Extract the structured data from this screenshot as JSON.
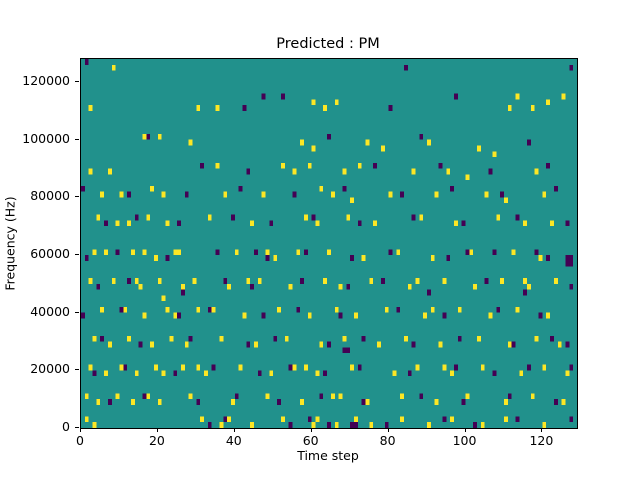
{
  "title": "Predicted : PM",
  "chart_data": {
    "type": "heatmap",
    "title": "Predicted : PM",
    "xlabel": "Time step",
    "ylabel": "Frequency (Hz)",
    "x_range": [
      0,
      129
    ],
    "y_range": [
      0,
      128000
    ],
    "x_ticks": [
      0,
      20,
      40,
      60,
      80,
      100,
      120
    ],
    "y_ticks": [
      0,
      20000,
      40000,
      60000,
      80000,
      100000,
      120000
    ],
    "n_time_steps": 129,
    "n_freq_bins": 64,
    "freq_bin_hz": 2000,
    "grid": false,
    "legend": "none",
    "colors": {
      "background_mid": "#21918c",
      "high_yellow": "#fde725",
      "low_purple": "#440154",
      "axes": "#000000",
      "figure_background": "#ffffff"
    },
    "yellow_cells": [
      [
        8,
        62
      ],
      [
        125,
        57
      ],
      [
        121,
        56
      ],
      [
        113,
        57
      ],
      [
        111,
        55
      ],
      [
        117,
        55
      ],
      [
        60,
        56
      ],
      [
        66,
        56
      ],
      [
        63,
        55
      ],
      [
        35,
        55
      ],
      [
        30,
        55
      ],
      [
        2,
        55
      ],
      [
        16,
        50
      ],
      [
        20,
        50
      ],
      [
        28,
        49
      ],
      [
        57,
        49
      ],
      [
        60,
        48
      ],
      [
        74,
        49
      ],
      [
        78,
        48
      ],
      [
        90,
        49
      ],
      [
        103,
        48
      ],
      [
        107,
        47
      ],
      [
        2,
        44
      ],
      [
        7,
        44
      ],
      [
        35,
        45
      ],
      [
        52,
        45
      ],
      [
        55,
        44
      ],
      [
        59,
        45
      ],
      [
        68,
        44
      ],
      [
        72,
        45
      ],
      [
        86,
        44
      ],
      [
        95,
        44
      ],
      [
        100,
        43
      ],
      [
        118,
        44
      ],
      [
        5,
        40
      ],
      [
        10,
        40
      ],
      [
        18,
        41
      ],
      [
        21,
        40
      ],
      [
        37,
        40
      ],
      [
        47,
        40
      ],
      [
        62,
        41
      ],
      [
        65,
        40
      ],
      [
        70,
        39
      ],
      [
        80,
        40
      ],
      [
        92,
        40
      ],
      [
        105,
        40
      ],
      [
        110,
        39
      ],
      [
        120,
        40
      ],
      [
        4,
        36
      ],
      [
        9,
        35
      ],
      [
        17,
        36
      ],
      [
        22,
        35
      ],
      [
        33,
        36
      ],
      [
        44,
        35
      ],
      [
        58,
        36
      ],
      [
        61,
        35
      ],
      [
        69,
        36
      ],
      [
        76,
        35
      ],
      [
        88,
        36
      ],
      [
        97,
        35
      ],
      [
        108,
        36
      ],
      [
        115,
        35
      ],
      [
        122,
        35
      ],
      [
        3,
        30
      ],
      [
        6,
        30
      ],
      [
        13,
        30
      ],
      [
        19,
        29
      ],
      [
        25,
        30
      ],
      [
        40,
        30
      ],
      [
        50,
        29
      ],
      [
        56,
        30
      ],
      [
        64,
        30
      ],
      [
        73,
        29
      ],
      [
        82,
        30
      ],
      [
        91,
        29
      ],
      [
        101,
        30
      ],
      [
        112,
        30
      ],
      [
        119,
        29
      ],
      [
        2,
        25
      ],
      [
        8,
        25
      ],
      [
        15,
        24
      ],
      [
        20,
        25
      ],
      [
        21,
        22
      ],
      [
        29,
        25
      ],
      [
        38,
        24
      ],
      [
        46,
        25
      ],
      [
        54,
        24
      ],
      [
        63,
        25
      ],
      [
        67,
        24
      ],
      [
        75,
        25
      ],
      [
        85,
        24
      ],
      [
        94,
        25
      ],
      [
        102,
        24
      ],
      [
        109,
        25
      ],
      [
        116,
        24
      ],
      [
        123,
        25
      ],
      [
        5,
        20
      ],
      [
        11,
        20
      ],
      [
        16,
        19
      ],
      [
        22,
        20
      ],
      [
        24,
        19
      ],
      [
        34,
        20
      ],
      [
        42,
        19
      ],
      [
        51,
        20
      ],
      [
        59,
        19
      ],
      [
        66,
        20
      ],
      [
        71,
        19
      ],
      [
        79,
        20
      ],
      [
        89,
        19
      ],
      [
        98,
        20
      ],
      [
        106,
        19
      ],
      [
        113,
        20
      ],
      [
        121,
        19
      ],
      [
        3,
        15
      ],
      [
        7,
        14
      ],
      [
        12,
        15
      ],
      [
        18,
        14
      ],
      [
        23,
        15
      ],
      [
        27,
        14
      ],
      [
        36,
        15
      ],
      [
        45,
        14
      ],
      [
        53,
        15
      ],
      [
        62,
        14
      ],
      [
        68,
        15
      ],
      [
        77,
        14
      ],
      [
        84,
        15
      ],
      [
        93,
        14
      ],
      [
        103,
        15
      ],
      [
        111,
        14
      ],
      [
        118,
        15
      ],
      [
        124,
        14
      ],
      [
        2,
        10
      ],
      [
        6,
        9
      ],
      [
        10,
        10
      ],
      [
        14,
        9
      ],
      [
        19,
        10
      ],
      [
        21,
        9
      ],
      [
        26,
        10
      ],
      [
        32,
        9
      ],
      [
        41,
        10
      ],
      [
        49,
        9
      ],
      [
        55,
        10
      ],
      [
        61,
        9
      ],
      [
        70,
        10
      ],
      [
        81,
        9
      ],
      [
        87,
        10
      ],
      [
        96,
        9
      ],
      [
        104,
        10
      ],
      [
        114,
        9
      ],
      [
        120,
        10
      ],
      [
        126,
        9
      ],
      [
        1,
        5
      ],
      [
        4,
        4
      ],
      [
        9,
        5
      ],
      [
        13,
        4
      ],
      [
        17,
        5
      ],
      [
        20,
        4
      ],
      [
        28,
        5
      ],
      [
        39,
        4
      ],
      [
        48,
        5
      ],
      [
        57,
        4
      ],
      [
        65,
        5
      ],
      [
        74,
        4
      ],
      [
        83,
        5
      ],
      [
        92,
        4
      ],
      [
        100,
        5
      ],
      [
        110,
        4
      ],
      [
        117,
        5
      ],
      [
        125,
        4
      ],
      [
        1,
        1
      ],
      [
        3,
        0
      ],
      [
        31,
        1
      ],
      [
        36,
        0
      ],
      [
        38,
        1
      ],
      [
        44,
        0
      ],
      [
        52,
        1
      ],
      [
        60,
        0
      ],
      [
        61,
        1
      ],
      [
        66,
        0
      ],
      [
        71,
        1
      ],
      [
        75,
        0
      ],
      [
        83,
        1
      ],
      [
        90,
        0
      ],
      [
        96,
        1
      ],
      [
        104,
        0
      ],
      [
        110,
        1
      ],
      [
        120,
        0
      ],
      [
        24,
        30
      ],
      [
        26,
        24
      ],
      [
        30,
        20
      ],
      [
        48,
        30
      ],
      [
        16,
        30
      ],
      [
        14,
        25
      ],
      [
        12,
        35
      ],
      [
        43,
        25
      ],
      [
        87,
        25
      ],
      [
        91,
        20
      ],
      [
        115,
        25
      ],
      [
        58,
        10
      ],
      [
        67,
        5
      ],
      [
        94,
        10
      ],
      [
        30,
        10
      ]
    ],
    "purple_cells": [
      [
        1,
        63
      ],
      [
        84,
        62
      ],
      [
        127,
        62
      ],
      [
        47,
        57
      ],
      [
        52,
        57
      ],
      [
        97,
        57
      ],
      [
        42,
        55
      ],
      [
        80,
        55
      ],
      [
        17,
        50
      ],
      [
        64,
        50
      ],
      [
        88,
        50
      ],
      [
        116,
        49
      ],
      [
        31,
        45
      ],
      [
        43,
        44
      ],
      [
        76,
        45
      ],
      [
        93,
        45
      ],
      [
        106,
        44
      ],
      [
        121,
        45
      ],
      [
        0,
        41
      ],
      [
        12,
        40
      ],
      [
        27,
        40
      ],
      [
        41,
        41
      ],
      [
        55,
        40
      ],
      [
        68,
        41
      ],
      [
        83,
        40
      ],
      [
        96,
        41
      ],
      [
        109,
        40
      ],
      [
        123,
        41
      ],
      [
        6,
        35
      ],
      [
        14,
        36
      ],
      [
        25,
        35
      ],
      [
        39,
        36
      ],
      [
        49,
        35
      ],
      [
        60,
        36
      ],
      [
        72,
        35
      ],
      [
        86,
        36
      ],
      [
        99,
        35
      ],
      [
        113,
        36
      ],
      [
        126,
        35
      ],
      [
        1,
        29
      ],
      [
        9,
        30
      ],
      [
        22,
        29
      ],
      [
        35,
        30
      ],
      [
        48,
        29
      ],
      [
        58,
        30
      ],
      [
        70,
        29
      ],
      [
        80,
        30
      ],
      [
        95,
        29
      ],
      [
        107,
        30
      ],
      [
        121,
        29
      ],
      [
        4,
        24
      ],
      [
        12,
        25
      ],
      [
        26,
        23
      ],
      [
        37,
        25
      ],
      [
        44,
        24
      ],
      [
        57,
        25
      ],
      [
        69,
        24
      ],
      [
        78,
        25
      ],
      [
        90,
        23
      ],
      [
        105,
        25
      ],
      [
        115,
        23
      ],
      [
        127,
        24
      ],
      [
        0,
        19
      ],
      [
        10,
        20
      ],
      [
        25,
        19
      ],
      [
        33,
        20
      ],
      [
        47,
        19
      ],
      [
        56,
        20
      ],
      [
        67,
        19
      ],
      [
        82,
        20
      ],
      [
        94,
        19
      ],
      [
        108,
        20
      ],
      [
        119,
        19
      ],
      [
        5,
        15
      ],
      [
        15,
        14
      ],
      [
        28,
        15
      ],
      [
        43,
        14
      ],
      [
        50,
        15
      ],
      [
        64,
        14
      ],
      [
        73,
        15
      ],
      [
        86,
        14
      ],
      [
        98,
        15
      ],
      [
        112,
        14
      ],
      [
        122,
        15
      ],
      [
        126,
        14
      ],
      [
        3,
        9
      ],
      [
        11,
        10
      ],
      [
        24,
        9
      ],
      [
        34,
        10
      ],
      [
        46,
        9
      ],
      [
        54,
        10
      ],
      [
        63,
        9
      ],
      [
        72,
        10
      ],
      [
        85,
        9
      ],
      [
        97,
        10
      ],
      [
        107,
        9
      ],
      [
        116,
        10
      ],
      [
        127,
        10
      ],
      [
        7,
        4
      ],
      [
        16,
        5
      ],
      [
        30,
        4
      ],
      [
        40,
        5
      ],
      [
        51,
        4
      ],
      [
        62,
        5
      ],
      [
        73,
        4
      ],
      [
        88,
        5
      ],
      [
        99,
        4
      ],
      [
        111,
        5
      ],
      [
        123,
        4
      ],
      [
        33,
        0
      ],
      [
        37,
        1
      ],
      [
        54,
        0
      ],
      [
        59,
        1
      ],
      [
        64,
        0
      ],
      [
        79,
        0
      ],
      [
        94,
        1
      ],
      [
        102,
        0
      ],
      [
        113,
        1
      ],
      [
        127,
        1
      ],
      [
        126,
        28
      ],
      [
        127,
        28
      ],
      [
        126,
        29
      ],
      [
        127,
        29
      ],
      [
        68,
        13
      ],
      [
        69,
        13
      ],
      [
        70,
        0
      ],
      [
        71,
        0
      ],
      [
        45,
        30
      ],
      [
        100,
        30
      ],
      [
        118,
        30
      ]
    ]
  }
}
